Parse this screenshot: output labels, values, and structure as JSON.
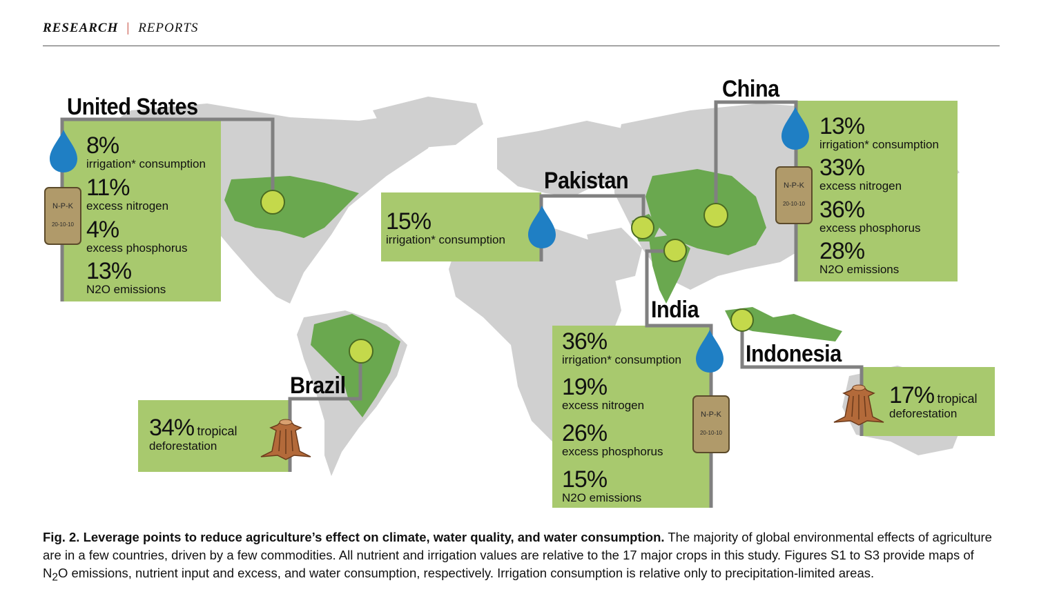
{
  "header": {
    "section": "RESEARCH",
    "separator": "|",
    "subsection": "REPORTS"
  },
  "figure": {
    "countries": {
      "us": {
        "name": "United States",
        "stats": [
          {
            "value": "8%",
            "label": "irrigation* consumption"
          },
          {
            "value": "11%",
            "label": "excess nitrogen"
          },
          {
            "value": "4%",
            "label": "excess phosphorus"
          },
          {
            "value": "13%",
            "label": "N2O emissions"
          }
        ]
      },
      "pakistan": {
        "name": "Pakistan",
        "stats": [
          {
            "value": "15%",
            "label": "irrigation* consumption"
          }
        ]
      },
      "china": {
        "name": "China",
        "stats": [
          {
            "value": "13%",
            "label": "irrigation* consumption"
          },
          {
            "value": "33%",
            "label": "excess nitrogen"
          },
          {
            "value": "36%",
            "label": "excess phosphorus"
          },
          {
            "value": "28%",
            "label": "N2O emissions"
          }
        ]
      },
      "india": {
        "name": "India",
        "stats": [
          {
            "value": "36%",
            "label": "irrigation* consumption"
          },
          {
            "value": "19%",
            "label": "excess nitrogen"
          },
          {
            "value": "26%",
            "label": "excess phosphorus"
          },
          {
            "value": "15%",
            "label": "N2O emissions"
          }
        ]
      },
      "brazil": {
        "name": "Brazil",
        "stats": [
          {
            "value": "34%",
            "label1": "tropical",
            "label2": "deforestation"
          }
        ]
      },
      "indonesia": {
        "name": "Indonesia",
        "stats": [
          {
            "value": "17%",
            "label1": "tropical",
            "label2": "deforestation"
          }
        ]
      }
    },
    "fertilizer_bag": {
      "line1": "N-P-K",
      "line2": "20-10-10"
    },
    "icons": [
      "water-drop-icon",
      "fertilizer-bag-icon",
      "tree-stump-icon"
    ],
    "colors": {
      "box_green": "#a8c96e",
      "country_green": "#6aa84f",
      "land_gray": "#d0d0d0",
      "connector": "#808080",
      "drop_blue": "#1f7fc4",
      "bag_brown": "#b09a6a",
      "marker": "#c4d94b"
    }
  },
  "caption": {
    "title": "Fig. 2. Leverage points to reduce agriculture’s effect on climate, water quality, and water consumption.",
    "text1": " The majority of global environmental effects of agriculture are in a few countries, driven by a few commodities. All nutrient and irrigation values are relative to the 17 major crops in this study. Figures S1 to S3 provide maps of N",
    "sub": "2",
    "text2": "O emissions, nutrient input and excess, and water consumption, respectively. Irrigation consumption is relative only to precipitation-limited areas."
  }
}
